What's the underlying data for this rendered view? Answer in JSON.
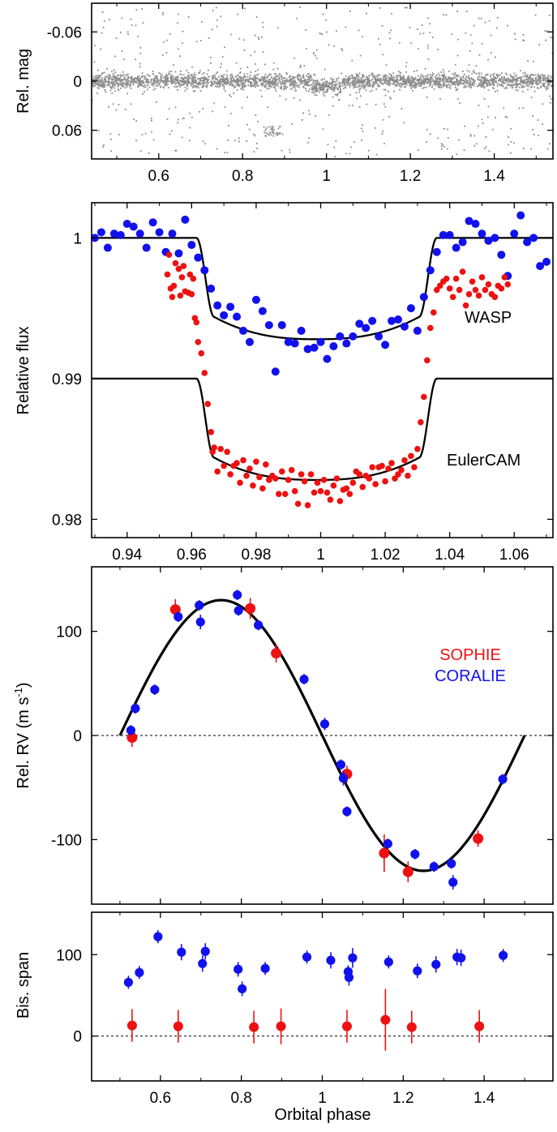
{
  "colors": {
    "sophie": "#ee1111",
    "coralie": "#1111ee",
    "wasp": "#1111ee",
    "euler": "#ee1111",
    "raw": "#8c8c8c",
    "model": "#000000"
  },
  "chart_data": [
    {
      "type": "scatter",
      "panel": "raw-photometry",
      "ylabel": "Rel. mag",
      "xlim": [
        0.44,
        1.54
      ],
      "ylim": [
        0.095,
        -0.095
      ],
      "y_inverted": true,
      "xticks": [
        "0.6",
        "0.8",
        "1",
        "1.2",
        "1.4"
      ],
      "yticks": [
        "-0.06",
        "0",
        "0.06"
      ],
      "series": [
        {
          "description": "dense grey photometry points, flat baseline at 0 with scatter about ±0.01, sparse outliers up to ±0.09, slight dip near phase 1"
        }
      ]
    },
    {
      "type": "line",
      "panel": "transit",
      "ylabel": "Relative flux",
      "xlim": [
        0.929,
        1.072
      ],
      "ylim": [
        0.9787,
        1.0025
      ],
      "xticks": [
        "0.94",
        "0.96",
        "0.98",
        "1",
        "1.02",
        "1.04",
        "1.06"
      ],
      "yticks": [
        "0.98",
        "0.99",
        "1"
      ],
      "annotations": [
        "WASP",
        "EulerCAM"
      ],
      "model": {
        "t1": 0.9615,
        "t2": 0.967,
        "t3": 1.0305,
        "t4": 1.036,
        "depth": 0.0072
      },
      "series": [
        {
          "name": "WASP",
          "offset": 0,
          "x": [
            0.93,
            0.932,
            0.934,
            0.936,
            0.938,
            0.94,
            0.942,
            0.944,
            0.946,
            0.948,
            0.95,
            0.952,
            0.954,
            0.956,
            0.958,
            0.96,
            0.962,
            0.964,
            0.966,
            0.968,
            0.97,
            0.972,
            0.974,
            0.976,
            0.978,
            0.98,
            0.982,
            0.984,
            0.986,
            0.988,
            0.99,
            0.992,
            0.994,
            0.996,
            0.998,
            1.0,
            1.002,
            1.004,
            1.006,
            1.008,
            1.01,
            1.012,
            1.014,
            1.016,
            1.018,
            1.02,
            1.022,
            1.024,
            1.026,
            1.028,
            1.03,
            1.032,
            1.034,
            1.036,
            1.038,
            1.04,
            1.042,
            1.044,
            1.046,
            1.048,
            1.05,
            1.052,
            1.054,
            1.056,
            1.058,
            1.06,
            1.062,
            1.064,
            1.066,
            1.068,
            1.07
          ],
          "y": [
            1.0,
            1.0004,
            0.9993,
            1.0003,
            1.0002,
            1.001,
            1.0008,
            1.0003,
            0.9993,
            1.0011,
            1.0004,
            0.999,
            1.0003,
            0.9989,
            1.0013,
            0.9995,
            0.9986,
            0.9977,
            0.9964,
            0.9952,
            0.9945,
            0.9951,
            0.9944,
            0.9934,
            0.9926,
            0.9956,
            0.9948,
            0.9938,
            0.9905,
            0.9938,
            0.9926,
            0.9925,
            0.9934,
            0.9921,
            0.9922,
            0.9926,
            0.9914,
            0.9923,
            0.993,
            0.9925,
            0.993,
            0.9939,
            0.9936,
            0.9941,
            0.993,
            0.9924,
            0.9941,
            0.9942,
            0.9937,
            0.995,
            0.9934,
            0.9958,
            0.9977,
            0.999,
            1.0002,
            1.0002,
            0.9993,
            0.9997,
            1.0012,
            1.001,
            1.0003,
            0.9998,
            1.0,
            0.9988,
            0.9973,
            1.0003,
            1.0016,
            0.9997,
            1.0,
            0.998,
            0.9983
          ]
        },
        {
          "name": "EulerCAM",
          "offset": -0.01,
          "x": [
            0.9525,
            0.953,
            0.9535,
            0.954,
            0.9545,
            0.955,
            0.956,
            0.9565,
            0.957,
            0.9575,
            0.958,
            0.959,
            0.9595,
            0.96,
            0.9605,
            0.961,
            0.9615,
            0.962,
            0.963,
            0.964,
            0.965,
            0.966,
            0.9665,
            0.967,
            0.968,
            0.969,
            0.97,
            0.971,
            0.972,
            0.973,
            0.974,
            0.975,
            0.976,
            0.977,
            0.978,
            0.979,
            0.98,
            0.981,
            0.982,
            0.983,
            0.984,
            0.985,
            0.986,
            0.987,
            0.988,
            0.989,
            0.99,
            0.991,
            0.992,
            0.993,
            0.994,
            0.995,
            0.996,
            0.997,
            0.998,
            0.999,
            1.0,
            1.001,
            1.002,
            1.003,
            1.004,
            1.005,
            1.006,
            1.007,
            1.008,
            1.009,
            1.01,
            1.011,
            1.012,
            1.013,
            1.014,
            1.015,
            1.016,
            1.017,
            1.018,
            1.019,
            1.02,
            1.021,
            1.022,
            1.023,
            1.024,
            1.025,
            1.026,
            1.027,
            1.028,
            1.029,
            1.03,
            1.031,
            1.032,
            1.033,
            1.034,
            1.035,
            1.036,
            1.037,
            1.038,
            1.039,
            1.04,
            1.041,
            1.042,
            1.043,
            1.044,
            1.045,
            1.046,
            1.047,
            1.048,
            1.049,
            1.05,
            1.051,
            1.052,
            1.053,
            1.054,
            1.055,
            1.056,
            1.057,
            1.058
          ],
          "y": [
            1.0074,
            1.0088,
            1.0064,
            1.0058,
            1.0066,
            1.0082,
            1.0078,
            1.0059,
            1.0072,
            1.008,
            1.0062,
            1.0061,
            1.0074,
            1.006,
            1.0071,
            1.0043,
            1.004,
            1.0026,
            1.0018,
            1.0004,
            0.9982,
            0.9962,
            0.9948,
            0.9951,
            0.9934,
            0.995,
            0.9938,
            0.9948,
            0.9932,
            0.9938,
            0.994,
            0.9926,
            0.9942,
            0.9931,
            0.9936,
            0.9924,
            0.9941,
            0.993,
            0.9922,
            0.9939,
            0.9928,
            0.9931,
            0.9929,
            0.9918,
            0.9934,
            0.9918,
            0.9928,
            0.9935,
            0.992,
            0.9911,
            0.9932,
            0.9927,
            0.991,
            0.9932,
            0.9919,
            0.9926,
            0.992,
            0.9928,
            0.9919,
            0.9914,
            0.9924,
            0.9929,
            0.9913,
            0.9921,
            0.9922,
            0.9918,
            0.9926,
            0.9934,
            0.9932,
            0.9923,
            0.9931,
            0.9929,
            0.9937,
            0.9925,
            0.9937,
            0.9938,
            0.9927,
            0.9936,
            0.994,
            0.9929,
            0.9932,
            0.9935,
            0.9942,
            0.9931,
            0.9945,
            0.9937,
            0.995,
            0.9969,
            0.9987,
            1.0013,
            1.0036,
            1.0047,
            1.0063,
            1.0066,
            1.0069,
            1.0071,
            1.0064,
            1.0058,
            1.0071,
            1.0063,
            1.0076,
            1.0052,
            1.006,
            1.0069,
            1.0063,
            1.0059,
            1.0072,
            1.0063,
            1.0067,
            1.006,
            1.0058,
            1.0066,
            1.0064,
            1.0072,
            1.0067
          ]
        }
      ]
    },
    {
      "type": "scatter",
      "panel": "radial-velocity",
      "ylabel": "Rel. RV (m s",
      "ylabel_sup": "-1",
      "ylabel_close": ")",
      "xlim": [
        0.43,
        1.57
      ],
      "ylim": [
        -162,
        162
      ],
      "xticks": [
        "0.6",
        "0.8",
        "1",
        "1.2",
        "1.4"
      ],
      "yticks": [
        "-100",
        "0",
        "100"
      ],
      "model": {
        "amplitude": 130,
        "phase_start": 0.5,
        "phase_end": 1.5
      },
      "legend": [
        "SOPHIE",
        "CORALIE"
      ],
      "series": [
        {
          "name": "SOPHIE",
          "x": [
            0.53,
            0.637,
            0.822,
            0.886,
            1.061,
            1.153,
            1.212,
            1.385
          ],
          "y": [
            -2,
            121,
            122,
            79,
            -37,
            -113,
            -131,
            -99
          ],
          "err": [
            9,
            10,
            10,
            9,
            8,
            18,
            10,
            8
          ]
        },
        {
          "name": "CORALIE",
          "x": [
            0.527,
            0.538,
            0.586,
            0.644,
            0.696,
            0.699,
            0.79,
            0.793,
            0.842,
            0.955,
            1.006,
            1.046,
            1.052,
            1.061,
            1.162,
            1.229,
            1.276,
            1.319,
            1.323,
            1.446
          ],
          "y": [
            5,
            26,
            44,
            114,
            125,
            109,
            135,
            120,
            106,
            54,
            11,
            -28,
            -41,
            -73,
            -104,
            -114,
            -126,
            -123,
            -141,
            -42
          ],
          "err": [
            5,
            5,
            5,
            5,
            5,
            7,
            5,
            5,
            5,
            5,
            6,
            5,
            7,
            5,
            5,
            5,
            5,
            5,
            7,
            5
          ]
        }
      ]
    },
    {
      "type": "scatter",
      "panel": "bisector-span",
      "ylabel": "Bis. span",
      "xlabel": "Orbital phase",
      "xlim": [
        0.43,
        1.57
      ],
      "ylim": [
        -55,
        152
      ],
      "xticks": [
        "0.6",
        "0.8",
        "1",
        "1.2",
        "1.4"
      ],
      "yticks": [
        "0",
        "100"
      ],
      "series": [
        {
          "name": "SOPHIE",
          "x": [
            0.53,
            0.644,
            0.831,
            0.898,
            1.061,
            1.156,
            1.221,
            1.388
          ],
          "y": [
            13,
            12,
            11,
            12,
            12,
            20,
            11,
            12
          ],
          "err": [
            20,
            20,
            20,
            22,
            20,
            38,
            20,
            20
          ]
        },
        {
          "name": "CORALIE",
          "x": [
            0.521,
            0.548,
            0.594,
            0.652,
            0.704,
            0.711,
            0.792,
            0.802,
            0.859,
            0.962,
            1.021,
            1.064,
            1.066,
            1.075,
            1.164,
            1.235,
            1.281,
            1.333,
            1.343,
            1.447
          ],
          "y": [
            66,
            78,
            122,
            103,
            89,
            104,
            82,
            58,
            83,
            97,
            93,
            79,
            72,
            96,
            91,
            80,
            88,
            97,
            96,
            99
          ],
          "err": [
            8,
            8,
            8,
            10,
            10,
            10,
            9,
            9,
            8,
            8,
            10,
            8,
            10,
            12,
            8,
            9,
            10,
            10,
            10,
            8
          ]
        }
      ]
    }
  ]
}
